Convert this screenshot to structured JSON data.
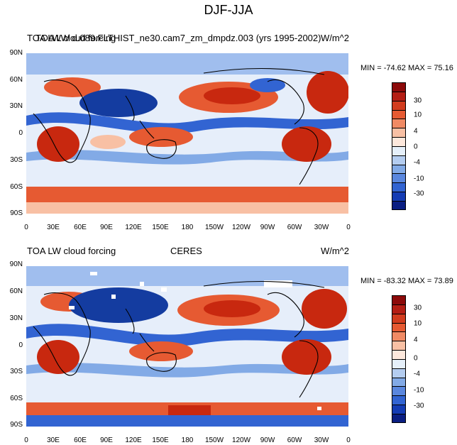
{
  "figure_title": "DJF-JJA",
  "panels": [
    {
      "left_title": "TOA LW cloud forcing",
      "overlap_title": "TOA LW d.089.FLTHIST_ne30.cam7_zm_dmpdz.003 (yrs 1995-2002)",
      "center_title": "",
      "units": "W/m^2",
      "min_max": "MIN = -74.62  MAX =  75.16"
    },
    {
      "left_title": "TOA LW cloud forcing",
      "overlap_title": "",
      "center_title": "CERES",
      "units": "W/m^2",
      "min_max": "MIN = -83.32  MAX =  73.89"
    }
  ],
  "axes": {
    "lat_labels": [
      "90N",
      "60N",
      "30N",
      "0",
      "30S",
      "60S",
      "90S"
    ],
    "lon_labels": [
      "0",
      "30E",
      "60E",
      "90E",
      "120E",
      "150E",
      "180",
      "150W",
      "120W",
      "90W",
      "60W",
      "30W",
      "0"
    ]
  },
  "colorbar": {
    "labels": [
      "30",
      "10",
      "4",
      "0",
      "-4",
      "-10",
      "-30"
    ],
    "colors": [
      "#8c0a0a",
      "#b41e14",
      "#d23c1e",
      "#e65a32",
      "#f08a64",
      "#f8c0a4",
      "#fde8dc",
      "#e6f0fa",
      "#b4cdf0",
      "#82aae6",
      "#5a87de",
      "#3264d2",
      "#143cb4",
      "#0a1e82"
    ]
  },
  "map_colors": {
    "base": "#e6eefa",
    "strong_red": "#c8280f",
    "red": "#e65a32",
    "salmon": "#f8c0a4",
    "light_blue": "#a0beee",
    "blue": "#3264d2",
    "dark_blue": "#143ca0",
    "coast": "#000000"
  }
}
